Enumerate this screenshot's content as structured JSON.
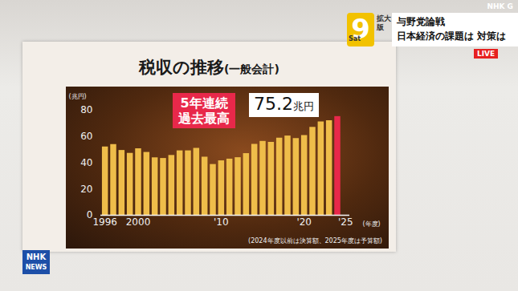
{
  "chart_data": {
    "type": "bar",
    "title": "税収の推移",
    "subtitle": "(一般会計)",
    "x": [
      1996,
      1997,
      1998,
      1999,
      2000,
      2001,
      2002,
      2003,
      2004,
      2005,
      2006,
      2007,
      2008,
      2009,
      2010,
      2011,
      2012,
      2013,
      2014,
      2015,
      2016,
      2017,
      2018,
      2019,
      2020,
      2021,
      2022,
      2023,
      2024
    ],
    "values": [
      52.1,
      53.9,
      49.4,
      47.2,
      50.7,
      47.9,
      43.8,
      43.3,
      45.6,
      49.1,
      49.1,
      51.0,
      44.3,
      38.7,
      41.5,
      42.8,
      43.9,
      47.0,
      54.0,
      56.3,
      55.5,
      58.8,
      60.4,
      58.4,
      60.8,
      67.0,
      71.1,
      72.1,
      75.2
    ],
    "colors": [
      "#efbd4a",
      "#efbd4a",
      "#efbd4a",
      "#efbd4a",
      "#efbd4a",
      "#efbd4a",
      "#efbd4a",
      "#efbd4a",
      "#efbd4a",
      "#efbd4a",
      "#efbd4a",
      "#efbd4a",
      "#efbd4a",
      "#efbd4a",
      "#efbd4a",
      "#efbd4a",
      "#efbd4a",
      "#efbd4a",
      "#efbd4a",
      "#efbd4a",
      "#efbd4a",
      "#efbd4a",
      "#efbd4a",
      "#efbd4a",
      "#efbd4a",
      "#efbd4a",
      "#efbd4a",
      "#efbd4a",
      "#e8284a"
    ],
    "xlim": [
      1995.5,
      2025.5
    ],
    "xticks": [
      1996,
      2000,
      {
        "value": 2010,
        "label": "'10"
      },
      {
        "value": 2020,
        "label": "'20"
      },
      {
        "value": 2025,
        "label": "'25"
      }
    ],
    "ylim": [
      0,
      80
    ],
    "yticks": [
      0,
      20,
      40,
      60,
      80
    ],
    "x_label": "(年度)",
    "y_label": "(兆円)",
    "grid": false,
    "annotations": [
      {
        "text": "5年連続\n過去最高"
      },
      {
        "text": "75.2兆円"
      }
    ],
    "note": "(2024年度以前は決算額、2025年度は予算額)"
  },
  "screen": {
    "logo": [
      "Sat",
      "9"
    ],
    "edition": "拡大版",
    "headline": "与野党論戦",
    "subheadline": "日本経済の課題は 対策は",
    "channel": "NHK G",
    "live": "LIVE",
    "badge": [
      "NHK",
      "NEWS"
    ]
  }
}
